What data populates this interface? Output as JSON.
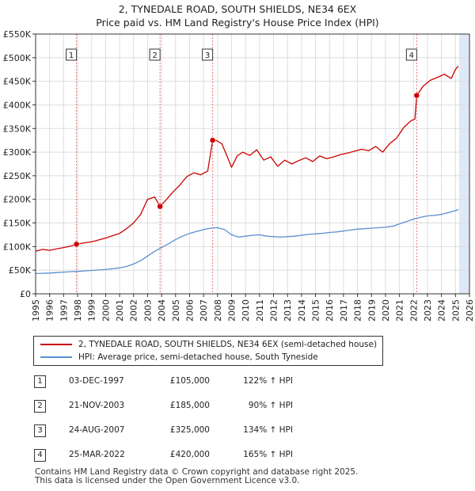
{
  "title_line1": "2, TYNEDALE ROAD, SOUTH SHIELDS, NE34 6EX",
  "title_line2": "Price paid vs. HM Land Registry's House Price Index (HPI)",
  "colors": {
    "property": "#cc0000",
    "hpi": "#5b8fd0",
    "shade": "#dfe8f6",
    "marker": "#cc0000"
  },
  "chart_data": {
    "type": "line",
    "title": "2, TYNEDALE ROAD, SOUTH SHIELDS, NE34 6EX — Price paid vs. HM Land Registry's House Price Index (HPI)",
    "xlabel": "",
    "ylabel": "",
    "xlim": [
      1995,
      2026
    ],
    "ylim": [
      0,
      550000
    ],
    "y_ticks": [
      "£0",
      "£50K",
      "£100K",
      "£150K",
      "£200K",
      "£250K",
      "£300K",
      "£350K",
      "£400K",
      "£450K",
      "£500K",
      "£550K"
    ],
    "x_ticks": [
      "1995",
      "1996",
      "1997",
      "1998",
      "1999",
      "2000",
      "2001",
      "2002",
      "2003",
      "2004",
      "2005",
      "2006",
      "2007",
      "2008",
      "2009",
      "2010",
      "2011",
      "2012",
      "2013",
      "2014",
      "2015",
      "2016",
      "2017",
      "2018",
      "2019",
      "2020",
      "2021",
      "2022",
      "2023",
      "2024",
      "2025",
      "2026"
    ],
    "grid": true,
    "shaded_future_from": 2025.25,
    "series": [
      {
        "name": "2, TYNEDALE ROAD, SOUTH SHIELDS, NE34 6EX (semi-detached house)",
        "x": [
          1995.0,
          1995.5,
          1996.0,
          1996.5,
          1997.0,
          1997.5,
          1997.92,
          1998.5,
          1999.0,
          1999.5,
          2000.0,
          2000.5,
          2001.0,
          2001.5,
          2002.0,
          2002.5,
          2003.0,
          2003.5,
          2003.89,
          2004.3,
          2004.8,
          2005.3,
          2005.8,
          2006.3,
          2006.8,
          2007.3,
          2007.65,
          2007.9,
          2008.3,
          2008.7,
          2009.0,
          2009.4,
          2009.8,
          2010.3,
          2010.8,
          2011.3,
          2011.8,
          2012.3,
          2012.8,
          2013.3,
          2013.8,
          2014.3,
          2014.8,
          2015.3,
          2015.8,
          2016.3,
          2016.8,
          2017.3,
          2017.8,
          2018.3,
          2018.8,
          2019.3,
          2019.8,
          2020.3,
          2020.8,
          2021.3,
          2021.8,
          2022.1,
          2022.23,
          2022.7,
          2023.2,
          2023.7,
          2024.2,
          2024.7,
          2025.0,
          2025.2
        ],
        "values": [
          90000,
          94000,
          92000,
          95000,
          98000,
          101000,
          105000,
          108000,
          110000,
          114000,
          118000,
          123000,
          128000,
          138000,
          150000,
          168000,
          200000,
          205000,
          185000,
          198000,
          215000,
          230000,
          248000,
          256000,
          252000,
          260000,
          325000,
          325000,
          318000,
          290000,
          268000,
          292000,
          300000,
          293000,
          305000,
          283000,
          290000,
          270000,
          283000,
          275000,
          282000,
          288000,
          280000,
          292000,
          286000,
          290000,
          295000,
          298000,
          302000,
          306000,
          303000,
          312000,
          300000,
          318000,
          330000,
          352000,
          366000,
          370000,
          420000,
          440000,
          452000,
          458000,
          465000,
          456000,
          475000,
          482000
        ]
      },
      {
        "name": "HPI: Average price, semi-detached house, South Tyneside",
        "x": [
          1995.0,
          1995.5,
          1996.0,
          1996.5,
          1997.0,
          1997.5,
          1998.0,
          1998.5,
          1999.0,
          1999.5,
          2000.0,
          2000.5,
          2001.0,
          2001.5,
          2002.0,
          2002.5,
          2003.0,
          2003.5,
          2004.0,
          2004.5,
          2005.0,
          2005.5,
          2006.0,
          2006.5,
          2007.0,
          2007.5,
          2008.0,
          2008.5,
          2009.0,
          2009.5,
          2010.0,
          2010.5,
          2011.0,
          2011.5,
          2012.0,
          2012.5,
          2013.0,
          2013.5,
          2014.0,
          2014.5,
          2015.0,
          2015.5,
          2016.0,
          2016.5,
          2017.0,
          2017.5,
          2018.0,
          2018.5,
          2019.0,
          2019.5,
          2020.0,
          2020.5,
          2021.0,
          2021.5,
          2022.0,
          2022.5,
          2023.0,
          2023.5,
          2024.0,
          2024.5,
          2025.0,
          2025.2
        ],
        "values": [
          43000,
          43500,
          44000,
          45000,
          46000,
          47000,
          47500,
          48500,
          49500,
          50500,
          51500,
          53000,
          55000,
          58000,
          63000,
          70000,
          80000,
          90000,
          98000,
          106000,
          115000,
          122000,
          128000,
          132000,
          136000,
          139000,
          140000,
          136000,
          125000,
          120000,
          122000,
          124000,
          125000,
          122000,
          121000,
          120000,
          121000,
          122000,
          124000,
          126000,
          127000,
          128000,
          130000,
          131000,
          133000,
          135000,
          137000,
          138000,
          139000,
          140000,
          141000,
          143000,
          148000,
          153000,
          158000,
          162000,
          165000,
          166000,
          168000,
          172000,
          176000,
          178000
        ]
      }
    ],
    "sales": [
      {
        "num": "1",
        "x": 1997.92,
        "value": 105000
      },
      {
        "num": "2",
        "x": 2003.89,
        "value": 185000
      },
      {
        "num": "3",
        "x": 2007.65,
        "value": 325000
      },
      {
        "num": "4",
        "x": 2022.23,
        "value": 420000
      }
    ]
  },
  "legend": {
    "property": "2, TYNEDALE ROAD, SOUTH SHIELDS, NE34 6EX (semi-detached house)",
    "hpi": "HPI: Average price, semi-detached house, South Tyneside"
  },
  "sales_table": [
    {
      "num": "1",
      "date": "03-DEC-1997",
      "price": "£105,000",
      "hpi": "122% ↑ HPI"
    },
    {
      "num": "2",
      "date": "21-NOV-2003",
      "price": "£185,000",
      "hpi": "90% ↑ HPI"
    },
    {
      "num": "3",
      "date": "24-AUG-2007",
      "price": "£325,000",
      "hpi": "134% ↑ HPI"
    },
    {
      "num": "4",
      "date": "25-MAR-2022",
      "price": "£420,000",
      "hpi": "165% ↑ HPI"
    }
  ],
  "footer_line1": "Contains HM Land Registry data © Crown copyright and database right 2025.",
  "footer_line2": "This data is licensed under the Open Government Licence v3.0."
}
